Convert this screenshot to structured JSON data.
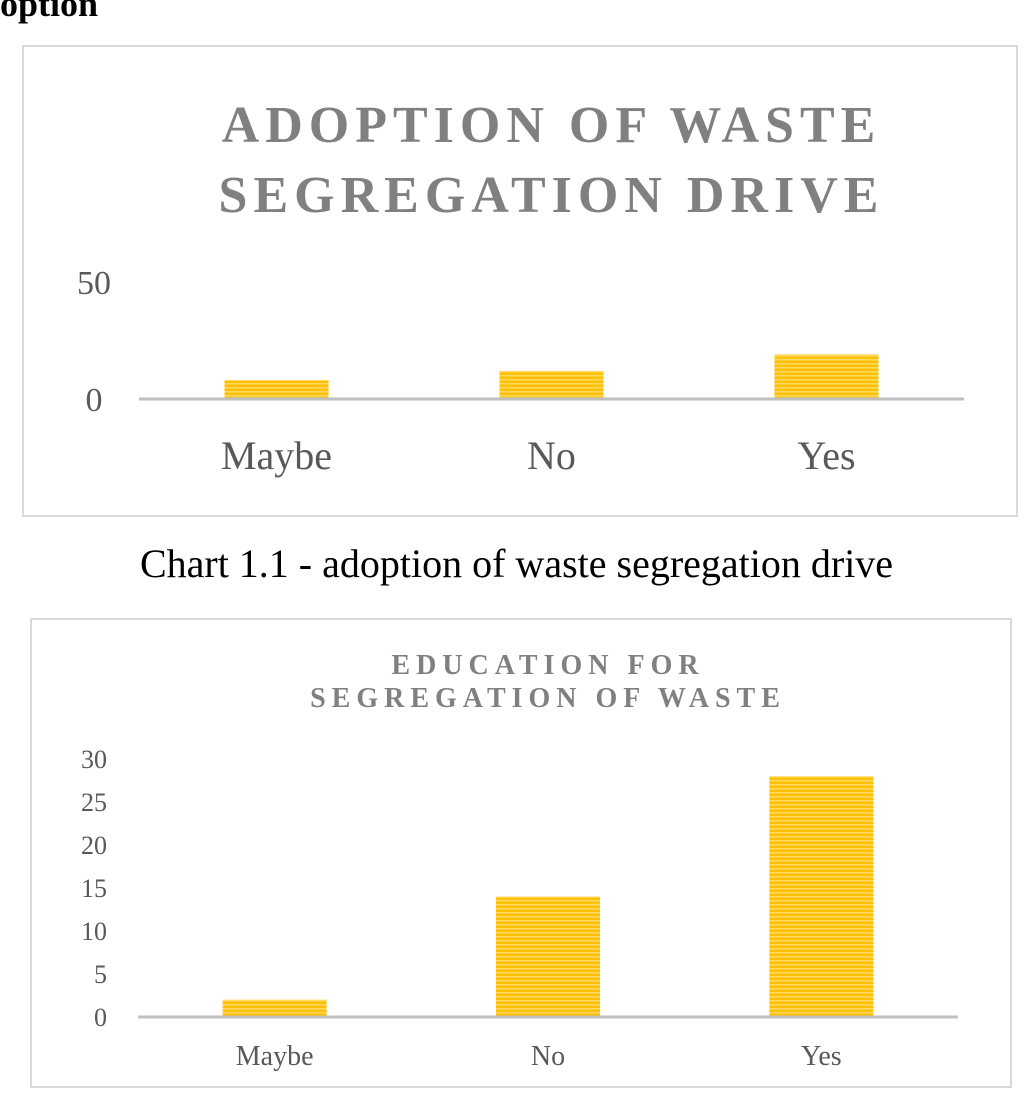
{
  "page": {
    "heading": "option"
  },
  "captions": [
    "Chart 1.1 - adoption of waste segregation drive"
  ],
  "colors": {
    "bar": "#ffc000",
    "bar_light": "#ffd966",
    "axis": "#bfbfbf",
    "title": "#808080",
    "tick": "#595959"
  },
  "chart_data": [
    {
      "type": "bar",
      "title_lines": [
        "ADOPTION OF WASTE",
        "SEGREGATION DRIVE"
      ],
      "categories": [
        "Maybe",
        "No",
        "Yes"
      ],
      "values": [
        8,
        12,
        19
      ],
      "yticks": [
        0,
        50
      ],
      "ylim": [
        0,
        50
      ],
      "grid": false,
      "legend": "none"
    },
    {
      "type": "bar",
      "title_lines": [
        "EDUCATION FOR",
        "SEGREGATION OF WASTE"
      ],
      "categories": [
        "Maybe",
        "No",
        "Yes"
      ],
      "values": [
        2,
        14,
        28
      ],
      "yticks": [
        0,
        5,
        10,
        15,
        20,
        25,
        30
      ],
      "ylim": [
        0,
        30
      ],
      "grid": false,
      "legend": "none"
    }
  ]
}
